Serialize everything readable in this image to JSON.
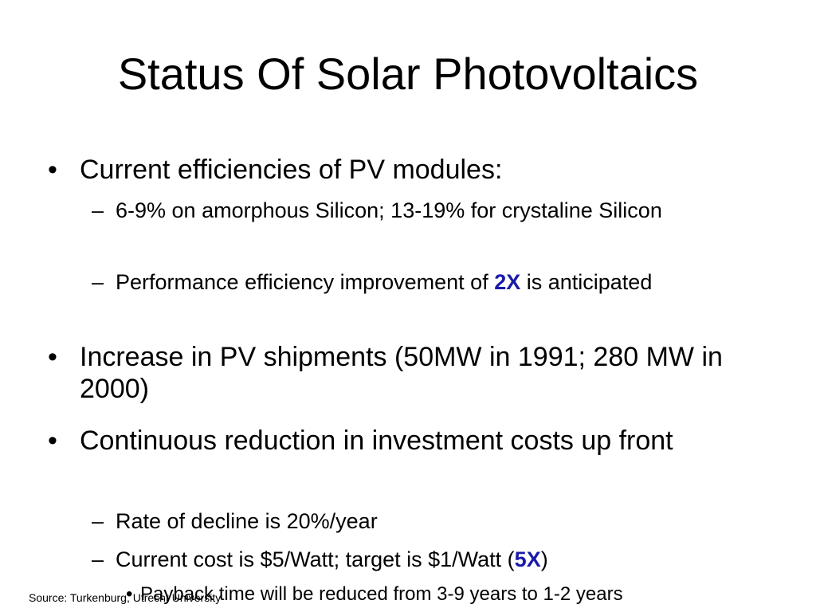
{
  "slide": {
    "title": "Status Of Solar Photovoltaics",
    "bullet_char": "•",
    "dash_char": "–",
    "items": [
      {
        "text": "Current efficiencies of PV modules:"
      },
      {
        "text": "6-9% on amorphous Silicon; 13-19% for crystaline Silicon"
      },
      {
        "before": "Performance efficiency improvement of ",
        "emph": "2X",
        "after": " is anticipated"
      },
      {
        "text": "Increase in PV shipments (50MW in 1991; 280 MW in 2000)"
      },
      {
        "text": "Continuous reduction in investment costs up front"
      },
      {
        "text": "Rate of decline is 20%/year"
      },
      {
        "before": "Current cost is $5/Watt; target is $1/Watt (",
        "emph": "5X",
        "after": ")"
      },
      {
        "text": "Payback time will be reduced from 3-9 years to 1-2 years"
      }
    ],
    "emphasis_color": "#1a1aa8",
    "source": "Source: Turkenburg, Utrecht University"
  }
}
